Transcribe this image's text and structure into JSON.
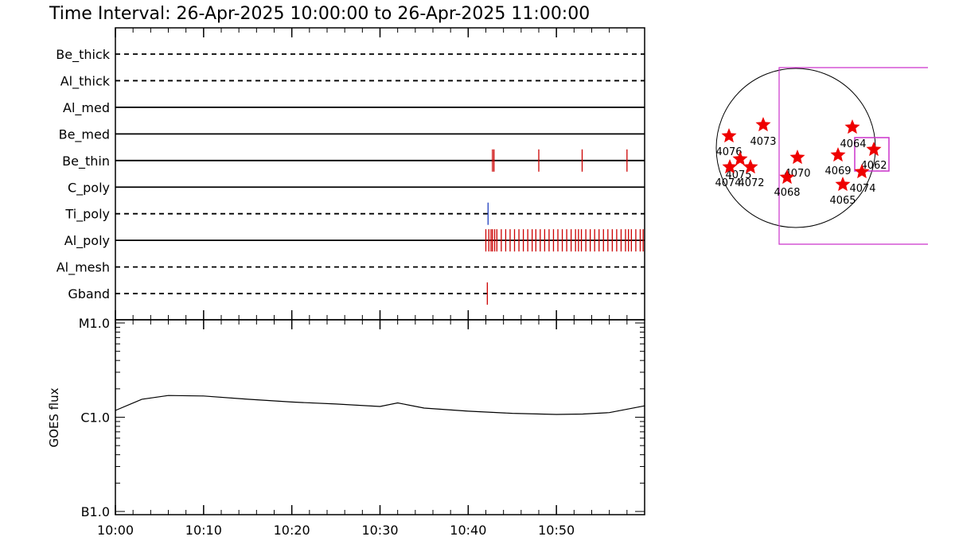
{
  "chart_data": [
    {
      "type": "timeline",
      "title": "Time Interval: 26-Apr-2025 10:00:00 to 26-Apr-2025 11:00:00",
      "xlim": [
        "10:00",
        "11:00"
      ],
      "rows": [
        {
          "name": "Be_thick",
          "style": "dashed",
          "color": "#cc0000",
          "events": []
        },
        {
          "name": "Al_thick",
          "style": "dashed",
          "color": "#cc0000",
          "events": []
        },
        {
          "name": "Al_med",
          "style": "solid",
          "color": "#cc0000",
          "events": []
        },
        {
          "name": "Be_med",
          "style": "solid",
          "color": "#cc0000",
          "events": []
        },
        {
          "name": "Be_thin",
          "style": "solid",
          "color": "#cc0000",
          "events": [
            "10:42:45",
            "10:42:55",
            "10:48:00",
            "10:52:55",
            "10:58:00"
          ]
        },
        {
          "name": "C_poly",
          "style": "solid",
          "color": "#cc0000",
          "events": []
        },
        {
          "name": "Ti_poly",
          "style": "dashed",
          "color": "#1f3fbf",
          "events": [
            "10:42:15"
          ]
        },
        {
          "name": "Al_poly",
          "style": "solid",
          "color": "#cc0000",
          "events": [
            "10:42:00",
            "10:42:20",
            "10:42:35",
            "10:42:45",
            "10:43:00",
            "10:43:15",
            "10:43:45",
            "10:44:15",
            "10:44:45",
            "10:45:15",
            "10:45:45",
            "10:46:15",
            "10:46:45",
            "10:47:15",
            "10:47:40",
            "10:48:10",
            "10:48:40",
            "10:49:10",
            "10:49:40",
            "10:50:10",
            "10:50:40",
            "10:51:10",
            "10:51:40",
            "10:52:10",
            "10:52:30",
            "10:52:50",
            "10:53:20",
            "10:53:50",
            "10:54:20",
            "10:54:50",
            "10:55:20",
            "10:55:50",
            "10:56:20",
            "10:56:50",
            "10:57:20",
            "10:57:50",
            "10:58:10",
            "10:58:30",
            "10:59:00",
            "10:59:30",
            "10:59:50"
          ]
        },
        {
          "name": "Al_mesh",
          "style": "dashed",
          "color": "#cc0000",
          "events": []
        },
        {
          "name": "Gband",
          "style": "dashed",
          "color": "#cc0000",
          "events": [
            "10:42:10"
          ]
        }
      ]
    },
    {
      "type": "line",
      "ylabel": "GOES flux",
      "log_scale": true,
      "color": "#000000",
      "xlim": [
        "10:00",
        "11:00"
      ],
      "xticks": [
        "10:00",
        "10:10",
        "10:20",
        "10:30",
        "10:40",
        "10:50"
      ],
      "ylim": [
        1e-07,
        1e-05
      ],
      "yticks": [
        {
          "value": 1e-05,
          "label": "M1.0"
        },
        {
          "value": 1e-06,
          "label": "C1.0"
        },
        {
          "value": 1e-07,
          "label": "B1.0"
        }
      ],
      "x": [
        "10:00",
        "10:03",
        "10:06",
        "10:10",
        "10:15",
        "10:20",
        "10:25",
        "10:30",
        "10:32",
        "10:35",
        "10:40",
        "10:45",
        "10:50",
        "10:53",
        "10:56",
        "11:00"
      ],
      "values": [
        1.18e-06,
        1.55e-06,
        1.7e-06,
        1.68e-06,
        1.55e-06,
        1.45e-06,
        1.38e-06,
        1.3e-06,
        1.42e-06,
        1.25e-06,
        1.16e-06,
        1.1e-06,
        1.07e-06,
        1.08e-06,
        1.12e-06,
        1.32e-06
      ]
    }
  ],
  "sun_map": {
    "regions": [
      "4076",
      "4073",
      "4075",
      "4074",
      "4072",
      "4070",
      "4068",
      "4064",
      "4069",
      "4062",
      "4074",
      "4065"
    ]
  }
}
